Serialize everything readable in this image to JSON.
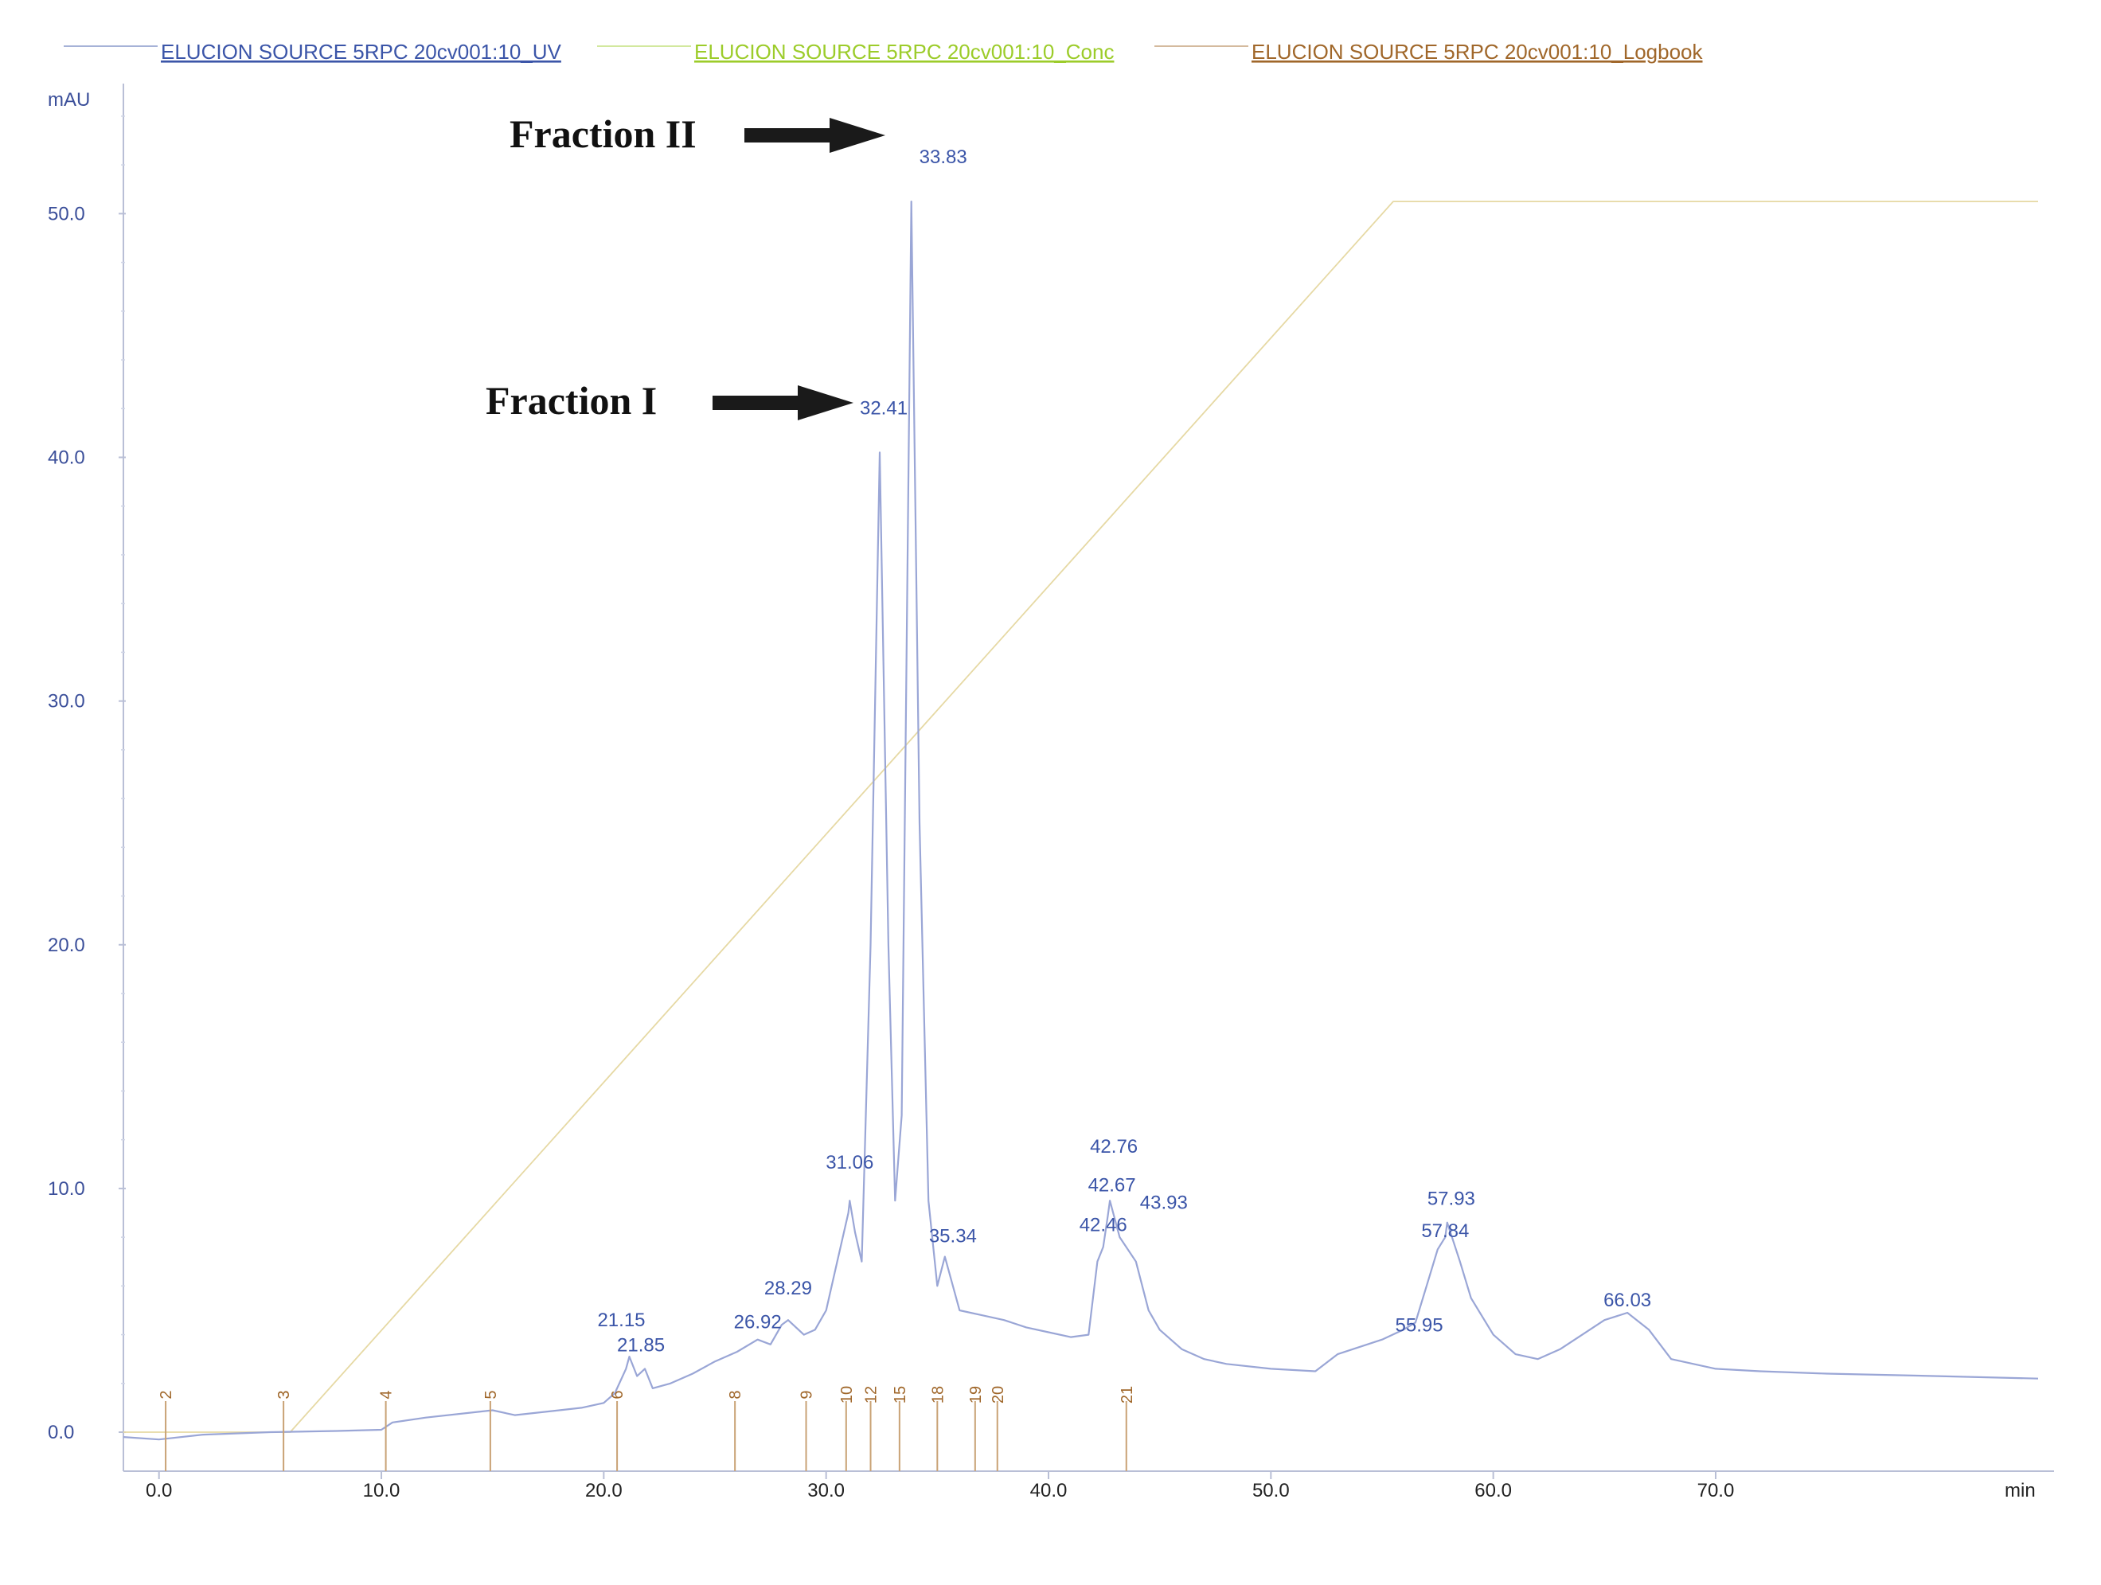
{
  "chart_data": {
    "type": "line",
    "xlabel": "min",
    "ylabel": "mAU",
    "xlim": [
      -1.6,
      84.5
    ],
    "ylim": [
      -1.6,
      55.5
    ],
    "x_ticks": [
      "0.0",
      "10.0",
      "20.0",
      "30.0",
      "40.0",
      "50.0",
      "60.0",
      "70.0"
    ],
    "y_ticks": [
      "0.0",
      "10.0",
      "20.0",
      "30.0",
      "40.0",
      "50.0"
    ],
    "grid": false,
    "legend_position": "top",
    "legend": [
      {
        "label": "ELUCION SOURCE 5RPC 20cv001:10_UV",
        "color": "#3b55a8"
      },
      {
        "label": "ELUCION SOURCE 5RPC 20cv001:10_Conc",
        "color": "#9ccc2a"
      },
      {
        "label": "ELUCION SOURCE 5RPC 20cv001:10_Logbook",
        "color": "#a0672a"
      }
    ],
    "series": [
      {
        "name": "ELUCION SOURCE 5RPC 20cv001:10_UV",
        "color": "#9aa6d6",
        "x": [
          -1.6,
          0,
          2,
          5,
          8,
          10,
          10.5,
          12,
          15,
          16,
          18,
          19,
          20,
          20.5,
          21,
          21.15,
          21.5,
          21.85,
          22.2,
          23,
          24,
          25,
          26,
          26.92,
          27.5,
          28,
          28.29,
          29,
          29.5,
          30,
          30.5,
          31,
          31.06,
          31.3,
          31.6,
          32,
          32.41,
          32.8,
          33.1,
          33.4,
          33.83,
          34.2,
          34.6,
          35,
          35.34,
          36,
          37,
          38,
          39,
          40,
          41,
          41.8,
          42.2,
          42.46,
          42.67,
          42.76,
          43.2,
          43.93,
          44.5,
          45,
          46,
          47,
          48,
          50,
          52,
          53,
          55,
          55.95,
          56.5,
          57,
          57.5,
          57.84,
          57.93,
          58.5,
          59,
          60,
          61,
          62,
          63,
          64,
          65,
          66.03,
          67,
          68,
          70,
          72,
          75,
          80,
          84.5
        ],
        "y": [
          -0.2,
          -0.3,
          -0.1,
          0.0,
          0.05,
          0.1,
          0.4,
          0.6,
          0.9,
          0.7,
          0.9,
          1.0,
          1.2,
          1.6,
          2.6,
          3.1,
          2.3,
          2.6,
          1.8,
          2.0,
          2.4,
          2.9,
          3.3,
          3.8,
          3.6,
          4.4,
          4.6,
          4.0,
          4.2,
          5.0,
          7.0,
          9.0,
          9.5,
          8.2,
          7.0,
          20.0,
          40.2,
          20.0,
          9.5,
          13.0,
          50.5,
          25.0,
          9.5,
          6.0,
          7.2,
          5.0,
          4.8,
          4.6,
          4.3,
          4.1,
          3.9,
          4.0,
          7.0,
          7.6,
          8.9,
          9.5,
          8.0,
          7.0,
          5.0,
          4.2,
          3.4,
          3.0,
          2.8,
          2.6,
          2.5,
          3.2,
          3.8,
          4.2,
          4.5,
          6.0,
          7.5,
          8.0,
          8.6,
          7.0,
          5.5,
          4.0,
          3.2,
          3.0,
          3.4,
          4.0,
          4.6,
          4.9,
          4.2,
          3.0,
          2.6,
          2.5,
          2.4,
          2.3,
          2.2
        ]
      },
      {
        "name": "ELUCION SOURCE 5RPC 20cv001:10_Conc",
        "color": "#e6d9a4",
        "x": [
          -1.6,
          5.9,
          55.5,
          84.5
        ],
        "y": [
          0,
          0,
          50.5,
          50.5
        ]
      }
    ],
    "peak_labels": [
      {
        "text": "33.83",
        "x": 33.83,
        "y": 50.5
      },
      {
        "text": "32.41",
        "x": 32.41,
        "y": 40.2
      },
      {
        "text": "31.06",
        "x": 31.06,
        "y": 9.5
      },
      {
        "text": "35.34",
        "x": 35.34,
        "y": 7.2
      },
      {
        "text": "28.29",
        "x": 28.29,
        "y": 4.6
      },
      {
        "text": "26.92",
        "x": 26.92,
        "y": 3.8
      },
      {
        "text": "21.15",
        "x": 21.15,
        "y": 3.1
      },
      {
        "text": "21.85",
        "x": 21.85,
        "y": 2.6
      },
      {
        "text": "42.76",
        "x": 42.76,
        "y": 9.5
      },
      {
        "text": "42.67",
        "x": 42.67,
        "y": 8.9
      },
      {
        "text": "43.93",
        "x": 43.93,
        "y": 7.0
      },
      {
        "text": "42.46",
        "x": 42.46,
        "y": 7.6
      },
      {
        "text": "57.93",
        "x": 57.93,
        "y": 8.6
      },
      {
        "text": "57.84",
        "x": 57.84,
        "y": 8.0
      },
      {
        "text": "55.95",
        "x": 55.95,
        "y": 4.2
      },
      {
        "text": "66.03",
        "x": 66.03,
        "y": 4.9
      }
    ],
    "fraction_marks": [
      {
        "label": "2",
        "x": 0.3
      },
      {
        "label": "3",
        "x": 5.6
      },
      {
        "label": "4",
        "x": 10.2
      },
      {
        "label": "5",
        "x": 14.9
      },
      {
        "label": "6",
        "x": 20.6
      },
      {
        "label": "8",
        "x": 25.9
      },
      {
        "label": "9",
        "x": 29.1
      },
      {
        "label": "10",
        "x": 30.9
      },
      {
        "label": "12",
        "x": 32.0
      },
      {
        "label": "15",
        "x": 33.3
      },
      {
        "label": "18",
        "x": 35.0
      },
      {
        "label": "19",
        "x": 36.7
      },
      {
        "label": "20",
        "x": 37.7
      },
      {
        "label": "21",
        "x": 43.5
      }
    ],
    "annotations": [
      {
        "text": "Fraction II",
        "target_label": "33.83"
      },
      {
        "text": "Fraction I",
        "target_label": "32.41"
      }
    ]
  }
}
